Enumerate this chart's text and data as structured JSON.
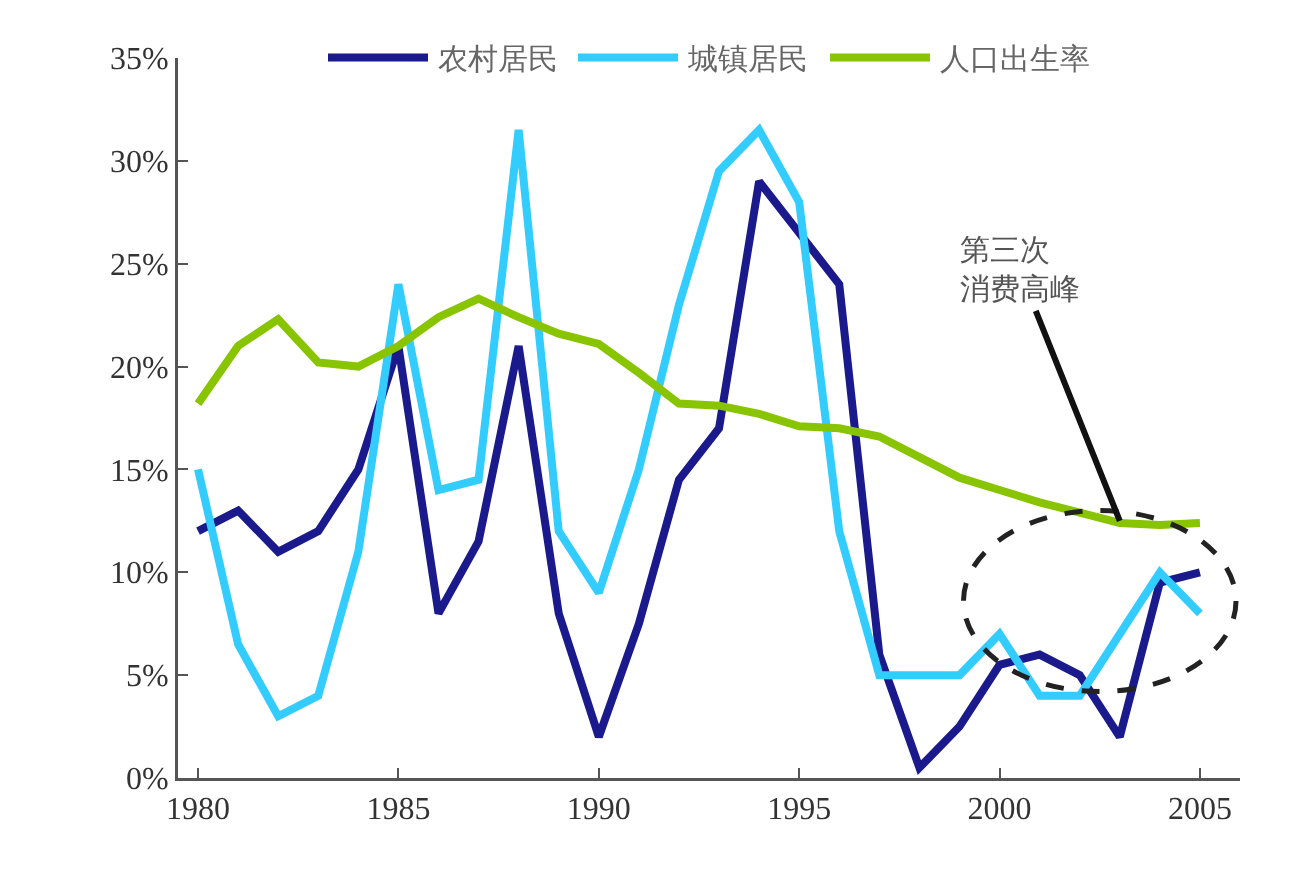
{
  "chart_data": {
    "type": "line",
    "x": [
      1980,
      1981,
      1982,
      1983,
      1984,
      1985,
      1986,
      1987,
      1988,
      1989,
      1990,
      1991,
      1992,
      1993,
      1994,
      1995,
      1996,
      1997,
      1998,
      1999,
      2000,
      2001,
      2002,
      2003,
      2004,
      2005
    ],
    "series": [
      {
        "name": "农村居民",
        "color": "#1a1a8c",
        "values": [
          12,
          13,
          11,
          12,
          15,
          21,
          8,
          11.5,
          21,
          8,
          2,
          7.5,
          14.5,
          17,
          29,
          26.5,
          24,
          6,
          0.5,
          2.5,
          5.5,
          6,
          5,
          2,
          9.5,
          10
        ]
      },
      {
        "name": "城镇居民",
        "color": "#33ccff",
        "values": [
          15,
          6.5,
          3,
          4,
          11,
          24,
          14,
          14.5,
          31.5,
          12,
          9,
          15,
          23,
          29.5,
          31.5,
          28,
          12,
          5,
          5,
          5,
          7,
          4,
          4,
          7,
          10,
          8
        ]
      },
      {
        "name": "人口出生率",
        "color": "#88c400",
        "values": [
          18.2,
          21,
          22.3,
          20.2,
          20,
          21,
          22.4,
          23.3,
          22.4,
          21.6,
          21.1,
          19.7,
          18.2,
          18.1,
          17.7,
          17.1,
          17,
          16.6,
          15.6,
          14.6,
          14,
          13.4,
          12.9,
          12.4,
          12.3,
          12.4
        ]
      }
    ],
    "xlim": [
      1979.5,
      2006
    ],
    "xticks": [
      1980,
      1985,
      1990,
      1995,
      2000,
      2005
    ],
    "ylim": [
      0,
      35
    ],
    "yticks": [
      {
        "value": 0,
        "label": "0%"
      },
      {
        "value": 5,
        "label": "5%"
      },
      {
        "value": 10,
        "label": "10%"
      },
      {
        "value": 15,
        "label": "15%"
      },
      {
        "value": 20,
        "label": "20%"
      },
      {
        "value": 25,
        "label": "25%"
      },
      {
        "value": 30,
        "label": "30%"
      },
      {
        "value": 35,
        "label": "35%"
      }
    ],
    "annotations": [
      {
        "text": "第三次消费高峰",
        "x": 2003,
        "y": 12.5
      }
    ],
    "legend": "top",
    "grid": false,
    "marker": "none",
    "line_style": "solid"
  }
}
